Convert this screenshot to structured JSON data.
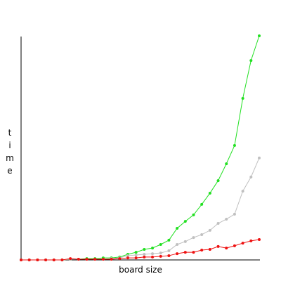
{
  "chart_data": {
    "type": "line",
    "xlabel": "board size",
    "ylabel": "time",
    "x": [
      1,
      2,
      3,
      4,
      5,
      6,
      7,
      8,
      9,
      10,
      11,
      12,
      13,
      14,
      15,
      16,
      17,
      18,
      19,
      20,
      21,
      22,
      23,
      24,
      25,
      26,
      27,
      28,
      29,
      30
    ],
    "xlim": [
      1,
      30
    ],
    "ylim": [
      0,
      100
    ],
    "series": [
      {
        "name": "green",
        "color": "#22e022",
        "values": [
          0,
          0,
          0,
          0,
          0,
          0,
          0.3,
          0.3,
          0.6,
          0.6,
          0.9,
          0.9,
          1.3,
          2.5,
          3.4,
          4.7,
          5.3,
          6.9,
          8.8,
          14.1,
          17.2,
          20.1,
          24.8,
          29.8,
          35.4,
          42.9,
          51.1,
          72.1,
          89.0,
          100
        ]
      },
      {
        "name": "gray",
        "color": "#c0c0c0",
        "values": [
          0,
          0,
          0,
          0,
          0,
          0,
          0.3,
          0.3,
          0.3,
          0.3,
          0.3,
          0.6,
          0.9,
          1.9,
          2.2,
          2.5,
          2.8,
          3.1,
          4.1,
          6.9,
          8.2,
          10.0,
          11.3,
          13.2,
          16.3,
          18.2,
          20.4,
          30.7,
          37.0,
          45.5
        ]
      },
      {
        "name": "red",
        "color": "#ee1111",
        "values": [
          0,
          0,
          0,
          0,
          0,
          0,
          0.6,
          0.3,
          0.3,
          0.3,
          0.3,
          0.3,
          0.6,
          0.9,
          0.9,
          1.3,
          1.3,
          1.6,
          1.9,
          2.8,
          3.4,
          3.4,
          4.4,
          4.7,
          6.0,
          5.3,
          6.3,
          7.5,
          8.5,
          9.1
        ]
      }
    ]
  }
}
